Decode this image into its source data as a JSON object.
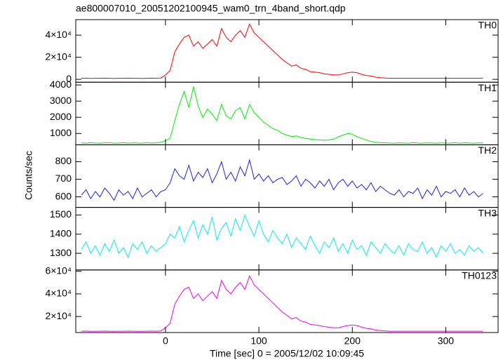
{
  "chart_data": {
    "type": "line",
    "title": "ae800007010_20051202100945_wam0_trn_4band_short.qdp",
    "xlabel": "Time [sec] 0 = 2005/12/02 10:09:45",
    "ylabel": "Counts/sec",
    "xlim": [
      -96,
      356
    ],
    "xticks": [
      0,
      100,
      200,
      300
    ],
    "x": [
      -90,
      -85,
      -80,
      -75,
      -70,
      -65,
      -60,
      -55,
      -50,
      -45,
      -40,
      -35,
      -30,
      -25,
      -20,
      -15,
      -10,
      -5,
      0,
      5,
      10,
      15,
      20,
      25,
      30,
      35,
      40,
      45,
      50,
      55,
      60,
      65,
      70,
      75,
      80,
      85,
      90,
      95,
      100,
      105,
      110,
      115,
      120,
      125,
      130,
      135,
      140,
      145,
      150,
      155,
      160,
      165,
      170,
      175,
      180,
      185,
      190,
      195,
      200,
      205,
      210,
      215,
      220,
      225,
      230,
      235,
      240,
      245,
      250,
      255,
      260,
      265,
      270,
      275,
      280,
      285,
      290,
      295,
      300,
      305,
      310,
      315,
      320,
      325,
      330,
      335,
      340
    ],
    "series": [
      {
        "name": "TH0",
        "color": "#ff0000",
        "ylim": [
          -2600,
          54000
        ],
        "yticks": [
          0,
          {
            "value": 20000,
            "label": "2×10⁴"
          },
          {
            "value": 40000,
            "label": "4×10⁴"
          }
        ],
        "values": [
          1000,
          1100,
          900,
          1000,
          1000,
          1100,
          1000,
          900,
          1000,
          1000,
          1100,
          1000,
          1000,
          900,
          1000,
          1100,
          1000,
          1200,
          4000,
          8000,
          25000,
          32000,
          38000,
          40000,
          30000,
          34000,
          28000,
          32000,
          36000,
          30000,
          46000,
          38000,
          34000,
          40000,
          44000,
          38000,
          50000,
          42000,
          38000,
          34000,
          30000,
          26000,
          22000,
          18000,
          15000,
          12000,
          13000,
          10000,
          9000,
          7000,
          6500,
          6000,
          5000,
          4500,
          4000,
          4000,
          5000,
          6000,
          6500,
          6000,
          4500,
          3500,
          3000,
          2000,
          1500,
          1200,
          1000,
          1000,
          1000,
          1000,
          1000,
          1000,
          1000,
          1000,
          1000,
          1000,
          1000,
          1000,
          1000,
          1000,
          1000,
          1000,
          1000,
          1000,
          1000,
          1000,
          1000
        ]
      },
      {
        "name": "TH1",
        "color": "#00ee00",
        "ylim": [
          300,
          4170
        ],
        "yticks": [
          1000,
          2000,
          3000,
          4000
        ],
        "values": [
          420,
          400,
          430,
          410,
          400,
          420,
          440,
          400,
          410,
          430,
          400,
          420,
          410,
          400,
          430,
          410,
          420,
          450,
          550,
          700,
          1800,
          2800,
          3600,
          2600,
          3900,
          2700,
          2000,
          2500,
          2200,
          1800,
          2800,
          2100,
          1900,
          2400,
          2600,
          1900,
          2800,
          2300,
          2000,
          1700,
          1500,
          1300,
          1200,
          1000,
          900,
          800,
          850,
          750,
          700,
          650,
          620,
          600,
          580,
          600,
          650,
          800,
          900,
          1000,
          950,
          800,
          700,
          600,
          500,
          450,
          430,
          420,
          410,
          400,
          420,
          410,
          400,
          430,
          410,
          400,
          420,
          410,
          400,
          420,
          400,
          410,
          430,
          400,
          420,
          410,
          400,
          420,
          410
        ]
      },
      {
        "name": "TH2",
        "color": "#2020dd",
        "ylim": [
          540,
          896
        ],
        "yticks": [
          600,
          700,
          800
        ],
        "values": [
          610,
          640,
          590,
          630,
          600,
          650,
          620,
          580,
          640,
          610,
          630,
          590,
          650,
          600,
          620,
          640,
          600,
          630,
          640,
          680,
          760,
          720,
          700,
          780,
          690,
          740,
          710,
          760,
          680,
          730,
          800,
          700,
          740,
          690,
          770,
          720,
          810,
          700,
          730,
          690,
          720,
          680,
          700,
          710,
          670,
          690,
          720,
          660,
          700,
          680,
          650,
          690,
          660,
          700,
          640,
          680,
          700,
          660,
          690,
          650,
          670,
          640,
          680,
          630,
          660,
          640,
          620,
          610,
          640,
          600,
          630,
          620,
          650,
          590,
          640,
          610,
          660,
          600,
          630,
          620,
          640,
          600,
          650,
          610,
          630,
          600,
          620
        ]
      },
      {
        "name": "TH3",
        "color": "#00eeee",
        "ylim": [
          1213,
          1540
        ],
        "yticks": [
          1300,
          1400,
          1500
        ],
        "values": [
          1320,
          1360,
          1300,
          1340,
          1290,
          1350,
          1310,
          1370,
          1300,
          1330,
          1280,
          1350,
          1320,
          1360,
          1300,
          1340,
          1310,
          1330,
          1350,
          1400,
          1380,
          1440,
          1360,
          1420,
          1470,
          1380,
          1450,
          1400,
          1490,
          1370,
          1430,
          1460,
          1390,
          1480,
          1420,
          1500,
          1440,
          1390,
          1470,
          1400,
          1360,
          1420,
          1380,
          1350,
          1400,
          1330,
          1380,
          1350,
          1320,
          1390,
          1340,
          1300,
          1360,
          1330,
          1380,
          1310,
          1350,
          1300,
          1370,
          1320,
          1340,
          1290,
          1360,
          1330,
          1300,
          1350,
          1320,
          1300,
          1340,
          1290,
          1350,
          1320,
          1310,
          1360,
          1300,
          1330,
          1280,
          1340,
          1310,
          1350,
          1300,
          1320,
          1290,
          1340,
          1310,
          1330,
          1300
        ]
      },
      {
        "name": "TH0123",
        "color": "#ee00ee",
        "ylim": [
          5800,
          61200
        ],
        "yticks": [
          {
            "value": 20000,
            "label": "2×10⁴"
          },
          {
            "value": 40000,
            "label": "4×10⁴"
          },
          {
            "value": 60000,
            "label": "6×10⁴"
          }
        ],
        "values": [
          7000,
          7100,
          6900,
          7000,
          7000,
          7100,
          7000,
          6900,
          7000,
          7000,
          7100,
          7000,
          7000,
          6900,
          7000,
          7100,
          7000,
          7200,
          10000,
          14000,
          31000,
          38000,
          44000,
          46000,
          36000,
          40000,
          34000,
          38000,
          42000,
          36000,
          52000,
          44000,
          40000,
          46000,
          50000,
          44000,
          56000,
          48000,
          44000,
          40000,
          36000,
          32000,
          28000,
          24000,
          21000,
          18000,
          19000,
          16000,
          15000,
          13000,
          12500,
          12000,
          11000,
          10500,
          10000,
          10000,
          11000,
          12000,
          12500,
          12000,
          10500,
          9500,
          9000,
          8000,
          7500,
          7200,
          7000,
          7000,
          7000,
          7000,
          7000,
          7000,
          7000,
          7000,
          7000,
          7000,
          7000,
          7000,
          7000,
          7000,
          7000,
          7000,
          7000,
          7000,
          7000,
          7000,
          7000
        ]
      }
    ]
  }
}
